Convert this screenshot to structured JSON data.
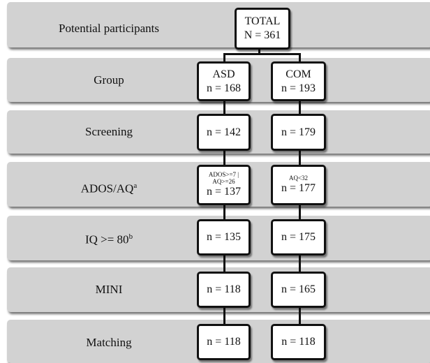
{
  "rows": [
    {
      "label": "Potential participants"
    },
    {
      "label": "Group"
    },
    {
      "label": "Screening"
    },
    {
      "label": "ADOS/AQ",
      "sup": "a"
    },
    {
      "label": "IQ >= 80",
      "sup": "b"
    },
    {
      "label": "MINI"
    },
    {
      "label": "Matching"
    }
  ],
  "total": {
    "title": "TOTAL",
    "n": "N = 361"
  },
  "asd": {
    "group_name": "ASD",
    "group_n": "n = 168",
    "screening_n": "n = 142",
    "ados_criterion_line1": "ADOS>=7 |",
    "ados_criterion_line2": "AQ>=26",
    "ados_n": "n = 137",
    "iq_n": "n = 135",
    "mini_n": "n = 118",
    "matching_n": "n = 118"
  },
  "com": {
    "group_name": "COM",
    "group_n": "n = 193",
    "screening_n": "n = 179",
    "aq_criterion": "AQ<32",
    "aq_n": "n = 177",
    "iq_n": "n = 175",
    "mini_n": "n = 165",
    "matching_n": "n = 118"
  }
}
